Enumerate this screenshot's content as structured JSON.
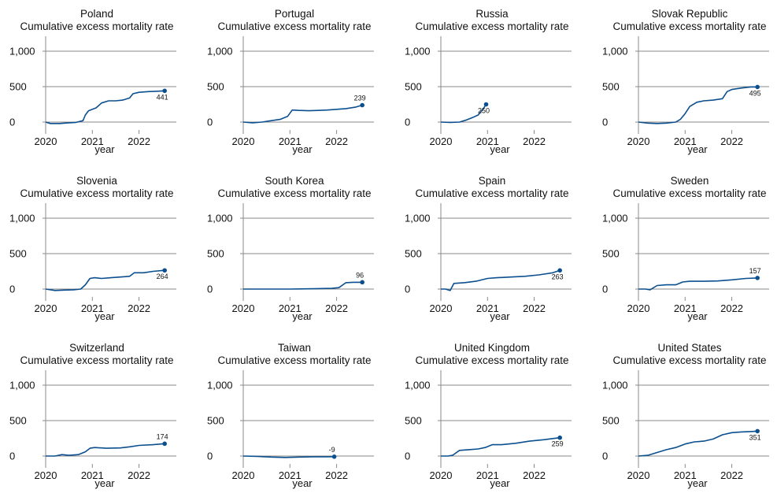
{
  "chart_data": [
    {
      "type": "line",
      "country": "Poland",
      "subtitle": "Cumulative excess mortality rate",
      "xlabel": "year",
      "xticks": [
        "2020",
        "2021",
        "2022"
      ],
      "yticks": [
        "0",
        "500",
        "1,000"
      ],
      "ylim": [
        -100,
        1100
      ],
      "xlim": [
        2020.0,
        2022.8
      ],
      "end_label": "441",
      "end_label_pos": "below",
      "series": [
        {
          "x": [
            2020.0,
            2020.1,
            2020.3,
            2020.5,
            2020.65,
            2020.8,
            2020.85,
            2020.92,
            2021.0,
            2021.08,
            2021.2,
            2021.35,
            2021.5,
            2021.65,
            2021.8,
            2021.87,
            2022.0,
            2022.2,
            2022.4,
            2022.55
          ],
          "y": [
            0,
            -20,
            -20,
            -10,
            -5,
            20,
            100,
            160,
            180,
            200,
            270,
            300,
            300,
            310,
            340,
            400,
            420,
            430,
            435,
            441
          ]
        }
      ]
    },
    {
      "type": "line",
      "country": "Portugal",
      "subtitle": "Cumulative excess mortality rate",
      "xlabel": "year",
      "xticks": [
        "2020",
        "2021",
        "2022"
      ],
      "yticks": [
        "0",
        "500",
        "1,000"
      ],
      "ylim": [
        -100,
        1100
      ],
      "xlim": [
        2020.0,
        2022.8
      ],
      "end_label": "239",
      "end_label_pos": "above",
      "series": [
        {
          "x": [
            2020.0,
            2020.2,
            2020.4,
            2020.6,
            2020.8,
            2020.95,
            2021.05,
            2021.2,
            2021.4,
            2021.6,
            2021.8,
            2022.0,
            2022.2,
            2022.4,
            2022.55
          ],
          "y": [
            0,
            -10,
            0,
            20,
            40,
            80,
            170,
            165,
            160,
            165,
            170,
            180,
            190,
            210,
            239
          ]
        }
      ]
    },
    {
      "type": "line",
      "country": "Russia",
      "subtitle": "Cumulative excess mortality rate",
      "xlabel": "year",
      "xticks": [
        "2020",
        "2021",
        "2022"
      ],
      "yticks": [
        "0",
        "500",
        "1,000"
      ],
      "ylim": [
        -100,
        1100
      ],
      "xlim": [
        2020.0,
        2022.8
      ],
      "end_label": "250",
      "end_label_pos": "below",
      "series": [
        {
          "x": [
            2020.0,
            2020.2,
            2020.4,
            2020.55,
            2020.7,
            2020.8,
            2020.9,
            2020.97
          ],
          "y": [
            0,
            -5,
            0,
            30,
            70,
            100,
            180,
            250
          ]
        }
      ]
    },
    {
      "type": "line",
      "country": "Slovak Republic",
      "subtitle": "Cumulative excess mortality rate",
      "xlabel": "year",
      "xticks": [
        "2020",
        "2021",
        "2022"
      ],
      "yticks": [
        "0",
        "500",
        "1,000"
      ],
      "ylim": [
        -100,
        1100
      ],
      "xlim": [
        2020.0,
        2022.8
      ],
      "end_label": "495",
      "end_label_pos": "below",
      "series": [
        {
          "x": [
            2020.0,
            2020.2,
            2020.4,
            2020.6,
            2020.8,
            2020.9,
            2021.0,
            2021.1,
            2021.25,
            2021.4,
            2021.6,
            2021.8,
            2021.9,
            2022.0,
            2022.2,
            2022.4,
            2022.55
          ],
          "y": [
            0,
            -15,
            -20,
            -15,
            0,
            40,
            120,
            220,
            280,
            300,
            310,
            330,
            430,
            460,
            480,
            495,
            495
          ]
        }
      ]
    },
    {
      "type": "line",
      "country": "Slovenia",
      "subtitle": "Cumulative excess mortality rate",
      "xlabel": "year",
      "xticks": [
        "2020",
        "2021",
        "2022"
      ],
      "yticks": [
        "0",
        "500",
        "1,000"
      ],
      "ylim": [
        -100,
        1100
      ],
      "xlim": [
        2020.0,
        2022.8
      ],
      "end_label": "264",
      "end_label_pos": "below",
      "series": [
        {
          "x": [
            2020.0,
            2020.2,
            2020.4,
            2020.6,
            2020.75,
            2020.85,
            2020.95,
            2021.05,
            2021.2,
            2021.4,
            2021.6,
            2021.8,
            2021.9,
            2022.1,
            2022.3,
            2022.55
          ],
          "y": [
            0,
            -20,
            -15,
            -10,
            0,
            60,
            150,
            160,
            150,
            160,
            170,
            180,
            230,
            230,
            250,
            264
          ]
        }
      ]
    },
    {
      "type": "line",
      "country": "South Korea",
      "subtitle": "Cumulative excess mortality rate",
      "xlabel": "year",
      "xticks": [
        "2020",
        "2021",
        "2022"
      ],
      "yticks": [
        "0",
        "500",
        "1,000"
      ],
      "ylim": [
        -100,
        1100
      ],
      "xlim": [
        2020.0,
        2022.8
      ],
      "end_label": "96",
      "end_label_pos": "above",
      "series": [
        {
          "x": [
            2020.0,
            2020.5,
            2021.0,
            2021.5,
            2021.9,
            2022.05,
            2022.2,
            2022.35,
            2022.55
          ],
          "y": [
            0,
            0,
            0,
            5,
            10,
            20,
            90,
            96,
            96
          ]
        }
      ]
    },
    {
      "type": "line",
      "country": "Spain",
      "subtitle": "Cumulative excess mortality rate",
      "xlabel": "year",
      "xticks": [
        "2020",
        "2021",
        "2022"
      ],
      "yticks": [
        "0",
        "500",
        "1,000"
      ],
      "ylim": [
        -100,
        1100
      ],
      "xlim": [
        2020.0,
        2022.8
      ],
      "end_label": "263",
      "end_label_pos": "below",
      "series": [
        {
          "x": [
            2020.0,
            2020.1,
            2020.2,
            2020.28,
            2020.5,
            2020.75,
            2021.0,
            2021.2,
            2021.5,
            2021.8,
            2022.1,
            2022.4,
            2022.55
          ],
          "y": [
            0,
            0,
            -20,
            80,
            90,
            110,
            150,
            160,
            170,
            180,
            200,
            230,
            263
          ]
        }
      ]
    },
    {
      "type": "line",
      "country": "Sweden",
      "subtitle": "Cumulative excess mortality rate",
      "xlabel": "year",
      "xticks": [
        "2020",
        "2021",
        "2022"
      ],
      "yticks": [
        "0",
        "500",
        "1,000"
      ],
      "ylim": [
        -100,
        1100
      ],
      "xlim": [
        2020.0,
        2022.8
      ],
      "end_label": "157",
      "end_label_pos": "above",
      "series": [
        {
          "x": [
            2020.0,
            2020.15,
            2020.25,
            2020.4,
            2020.6,
            2020.8,
            2020.95,
            2021.1,
            2021.4,
            2021.7,
            2022.0,
            2022.3,
            2022.55
          ],
          "y": [
            0,
            0,
            -10,
            50,
            60,
            60,
            100,
            110,
            110,
            115,
            130,
            150,
            157
          ]
        }
      ]
    },
    {
      "type": "line",
      "country": "Switzerland",
      "subtitle": "Cumulative excess mortality rate",
      "xlabel": "year",
      "xticks": [
        "2020",
        "2021",
        "2022"
      ],
      "yticks": [
        "0",
        "500",
        "1,000"
      ],
      "ylim": [
        -100,
        1100
      ],
      "xlim": [
        2020.0,
        2022.8
      ],
      "end_label": "174",
      "end_label_pos": "above",
      "series": [
        {
          "x": [
            2020.0,
            2020.2,
            2020.35,
            2020.5,
            2020.7,
            2020.85,
            2020.95,
            2021.05,
            2021.3,
            2021.6,
            2021.8,
            2022.0,
            2022.3,
            2022.55
          ],
          "y": [
            0,
            0,
            20,
            10,
            20,
            60,
            110,
            120,
            110,
            115,
            130,
            150,
            160,
            174
          ]
        }
      ]
    },
    {
      "type": "line",
      "country": "Taiwan",
      "subtitle": "Cumulative excess mortality rate",
      "xlabel": "year",
      "xticks": [
        "2020",
        "2021",
        "2022"
      ],
      "yticks": [
        "0",
        "500",
        "1,000"
      ],
      "ylim": [
        -100,
        1100
      ],
      "xlim": [
        2020.0,
        2022.8
      ],
      "end_label": "-9",
      "end_label_pos": "above",
      "series": [
        {
          "x": [
            2020.0,
            2020.3,
            2020.6,
            2020.9,
            2021.2,
            2021.5,
            2021.8,
            2021.95
          ],
          "y": [
            0,
            -5,
            -15,
            -20,
            -15,
            -10,
            -10,
            -9
          ]
        }
      ]
    },
    {
      "type": "line",
      "country": "United Kingdom",
      "subtitle": "Cumulative excess mortality rate",
      "xlabel": "year",
      "xticks": [
        "2020",
        "2021",
        "2022"
      ],
      "yticks": [
        "0",
        "500",
        "1,000"
      ],
      "ylim": [
        -100,
        1100
      ],
      "xlim": [
        2020.0,
        2022.8
      ],
      "end_label": "259",
      "end_label_pos": "below",
      "series": [
        {
          "x": [
            2020.0,
            2020.15,
            2020.25,
            2020.4,
            2020.6,
            2020.8,
            2020.95,
            2021.1,
            2021.3,
            2021.6,
            2021.9,
            2022.2,
            2022.55
          ],
          "y": [
            0,
            0,
            10,
            80,
            90,
            100,
            120,
            160,
            160,
            180,
            210,
            230,
            259
          ]
        }
      ]
    },
    {
      "type": "line",
      "country": "United States",
      "subtitle": "Cumulative excess mortality rate",
      "xlabel": "year",
      "xticks": [
        "2020",
        "2021",
        "2022"
      ],
      "yticks": [
        "0",
        "500",
        "1,000"
      ],
      "ylim": [
        -100,
        1100
      ],
      "xlim": [
        2020.0,
        2022.8
      ],
      "end_label": "351",
      "end_label_pos": "below",
      "series": [
        {
          "x": [
            2020.0,
            2020.2,
            2020.4,
            2020.6,
            2020.8,
            2021.0,
            2021.2,
            2021.4,
            2021.6,
            2021.8,
            2022.0,
            2022.2,
            2022.4,
            2022.55
          ],
          "y": [
            0,
            10,
            50,
            90,
            120,
            170,
            200,
            210,
            240,
            300,
            330,
            340,
            345,
            351
          ]
        }
      ]
    }
  ],
  "colors": {
    "line": "#0b4f8e",
    "axis": "#8a8a8a",
    "text": "#111111"
  }
}
